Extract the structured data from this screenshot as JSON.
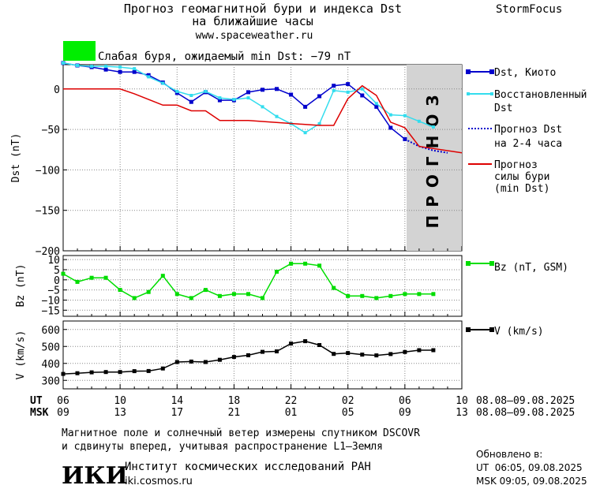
{
  "header": {
    "title_line1": "Прогноз геомагнитной бури и индекса Dst",
    "title_line2": "на ближайшие часы",
    "url": "www.spaceweather.ru",
    "brand": "StormFocus"
  },
  "status": {
    "color": "#00ee00",
    "text": "Слабая буря, ожидаемый min Dst: −79 nT"
  },
  "forecast_band_label": "ПРОГНОЗ",
  "legend": {
    "dst_kyoto": "Dst, Киото",
    "restored_1": "Восстановленный",
    "restored_2": "Dst",
    "forecast_1": "Прогноз Dst",
    "forecast_2": "на 2-4 часа",
    "storm_1": "Прогноз",
    "storm_2": "силы бури",
    "storm_3": "(min Dst)",
    "bz": "Bz (nT, GSM)",
    "v": "V (km/s)"
  },
  "time_axis": {
    "ut_label": "UT",
    "msk_label": "MSK",
    "ut_ticks": [
      "06",
      "10",
      "14",
      "18",
      "22",
      "02",
      "06",
      "10"
    ],
    "msk_ticks": [
      "09",
      "13",
      "17",
      "21",
      "01",
      "05",
      "09",
      "13"
    ],
    "ut_range": "08.08–09.08.2025",
    "msk_range": "08.08–09.08.2025"
  },
  "footer": {
    "line1": "Магнитное поле и солнечный ветер измерены спутником DSCOVR",
    "line2": "и сдвинуты вперед, учитывая распространение L1–Земля",
    "logo_text": "ИКИ",
    "institute": "Институт космических исследований РАН",
    "site": "iki.cosmos.ru",
    "updated_label": "Обновлено в:",
    "updated_ut": "UT  06:05, 09.08.2025",
    "updated_msk": "MSK 09:05, 09.08.2025"
  },
  "chart_data": [
    {
      "type": "line",
      "ylabel": "Dst (nT)",
      "ylim": [
        -200,
        30
      ],
      "yticks": [
        0,
        -50,
        -100,
        -150,
        -200
      ],
      "xlim": [
        0,
        28
      ],
      "forecast_region": [
        24,
        28
      ],
      "series": [
        {
          "name": "Dst, Киото",
          "color": "#0000cc",
          "x": [
            0,
            1,
            2,
            3,
            4,
            5,
            6,
            7,
            8,
            9,
            10,
            11,
            12,
            13,
            14,
            15,
            16,
            17,
            18,
            19,
            20,
            21,
            22,
            23,
            24
          ],
          "values": [
            32,
            29,
            27,
            24,
            21,
            21,
            17,
            8,
            -5,
            -16,
            -4,
            -14,
            -14,
            -4,
            -1,
            0,
            -7,
            -22,
            -9,
            4,
            6,
            -8,
            -22,
            -48,
            -62
          ]
        },
        {
          "name": "Восстановленный Dst",
          "color": "#33ddee",
          "x": [
            0,
            1,
            2,
            3,
            4,
            5,
            6,
            7,
            8,
            9,
            10,
            11,
            12,
            13,
            14,
            15,
            16,
            17,
            18,
            19,
            20,
            21,
            22,
            23,
            24,
            25,
            26
          ],
          "values": [
            32,
            29,
            28,
            28,
            27,
            25,
            15,
            7,
            -3,
            -8,
            -3,
            -11,
            -13,
            -11,
            -22,
            -34,
            -43,
            -54,
            -43,
            -2,
            -4,
            0,
            -18,
            -32,
            -33,
            -40,
            -47
          ]
        },
        {
          "name": "Прогноз Dst на 2-4 часа",
          "color": "#0000cc",
          "x": [
            24,
            25,
            26,
            27
          ],
          "values": [
            -62,
            -71,
            -76,
            -79
          ]
        },
        {
          "name": "Прогноз силы бури (min Dst)",
          "color": "#dd0000",
          "x": [
            0,
            4,
            5,
            7,
            8,
            9,
            10,
            11,
            12,
            13,
            18,
            19,
            20,
            21,
            22,
            23,
            24,
            25,
            28
          ],
          "values": [
            0,
            0,
            -6,
            -20,
            -20,
            -27,
            -27,
            -39,
            -39,
            -39,
            -45,
            -45,
            -12,
            4,
            -8,
            -41,
            -48,
            -71,
            -79
          ]
        }
      ]
    },
    {
      "type": "line",
      "ylabel": "Bz (nT)",
      "ylim": [
        -18,
        12
      ],
      "yticks": [
        10,
        5,
        0,
        -5,
        -10,
        -15
      ],
      "series": [
        {
          "name": "Bz (nT, GSM)",
          "color": "#00dd00",
          "x": [
            0,
            1,
            2,
            3,
            4,
            5,
            6,
            7,
            8,
            9,
            10,
            11,
            12,
            13,
            14,
            15,
            16,
            17,
            18,
            19,
            20,
            21,
            22,
            23,
            24,
            25,
            26
          ],
          "values": [
            3,
            -1,
            1,
            1,
            -5,
            -9,
            -6,
            2,
            -7,
            -9,
            -5,
            -8,
            -7,
            -7,
            -9,
            4,
            8,
            8,
            7,
            -4,
            -8,
            -8,
            -9,
            -8,
            -7,
            -7,
            -7
          ]
        }
      ]
    },
    {
      "type": "line",
      "ylabel": "V (km/s)",
      "ylim": [
        250,
        650
      ],
      "yticks": [
        600,
        500,
        400,
        300
      ],
      "series": [
        {
          "name": "V (km/s)",
          "color": "#000000",
          "x": [
            0,
            1,
            2,
            3,
            4,
            5,
            6,
            7,
            8,
            9,
            10,
            11,
            12,
            13,
            14,
            15,
            16,
            17,
            18,
            19,
            20,
            21,
            22,
            23,
            24,
            25,
            26
          ],
          "values": [
            338,
            342,
            347,
            349,
            349,
            354,
            355,
            370,
            408,
            411,
            408,
            421,
            438,
            448,
            468,
            471,
            517,
            531,
            508,
            456,
            461,
            452,
            447,
            455,
            467,
            478,
            478
          ]
        }
      ]
    }
  ]
}
